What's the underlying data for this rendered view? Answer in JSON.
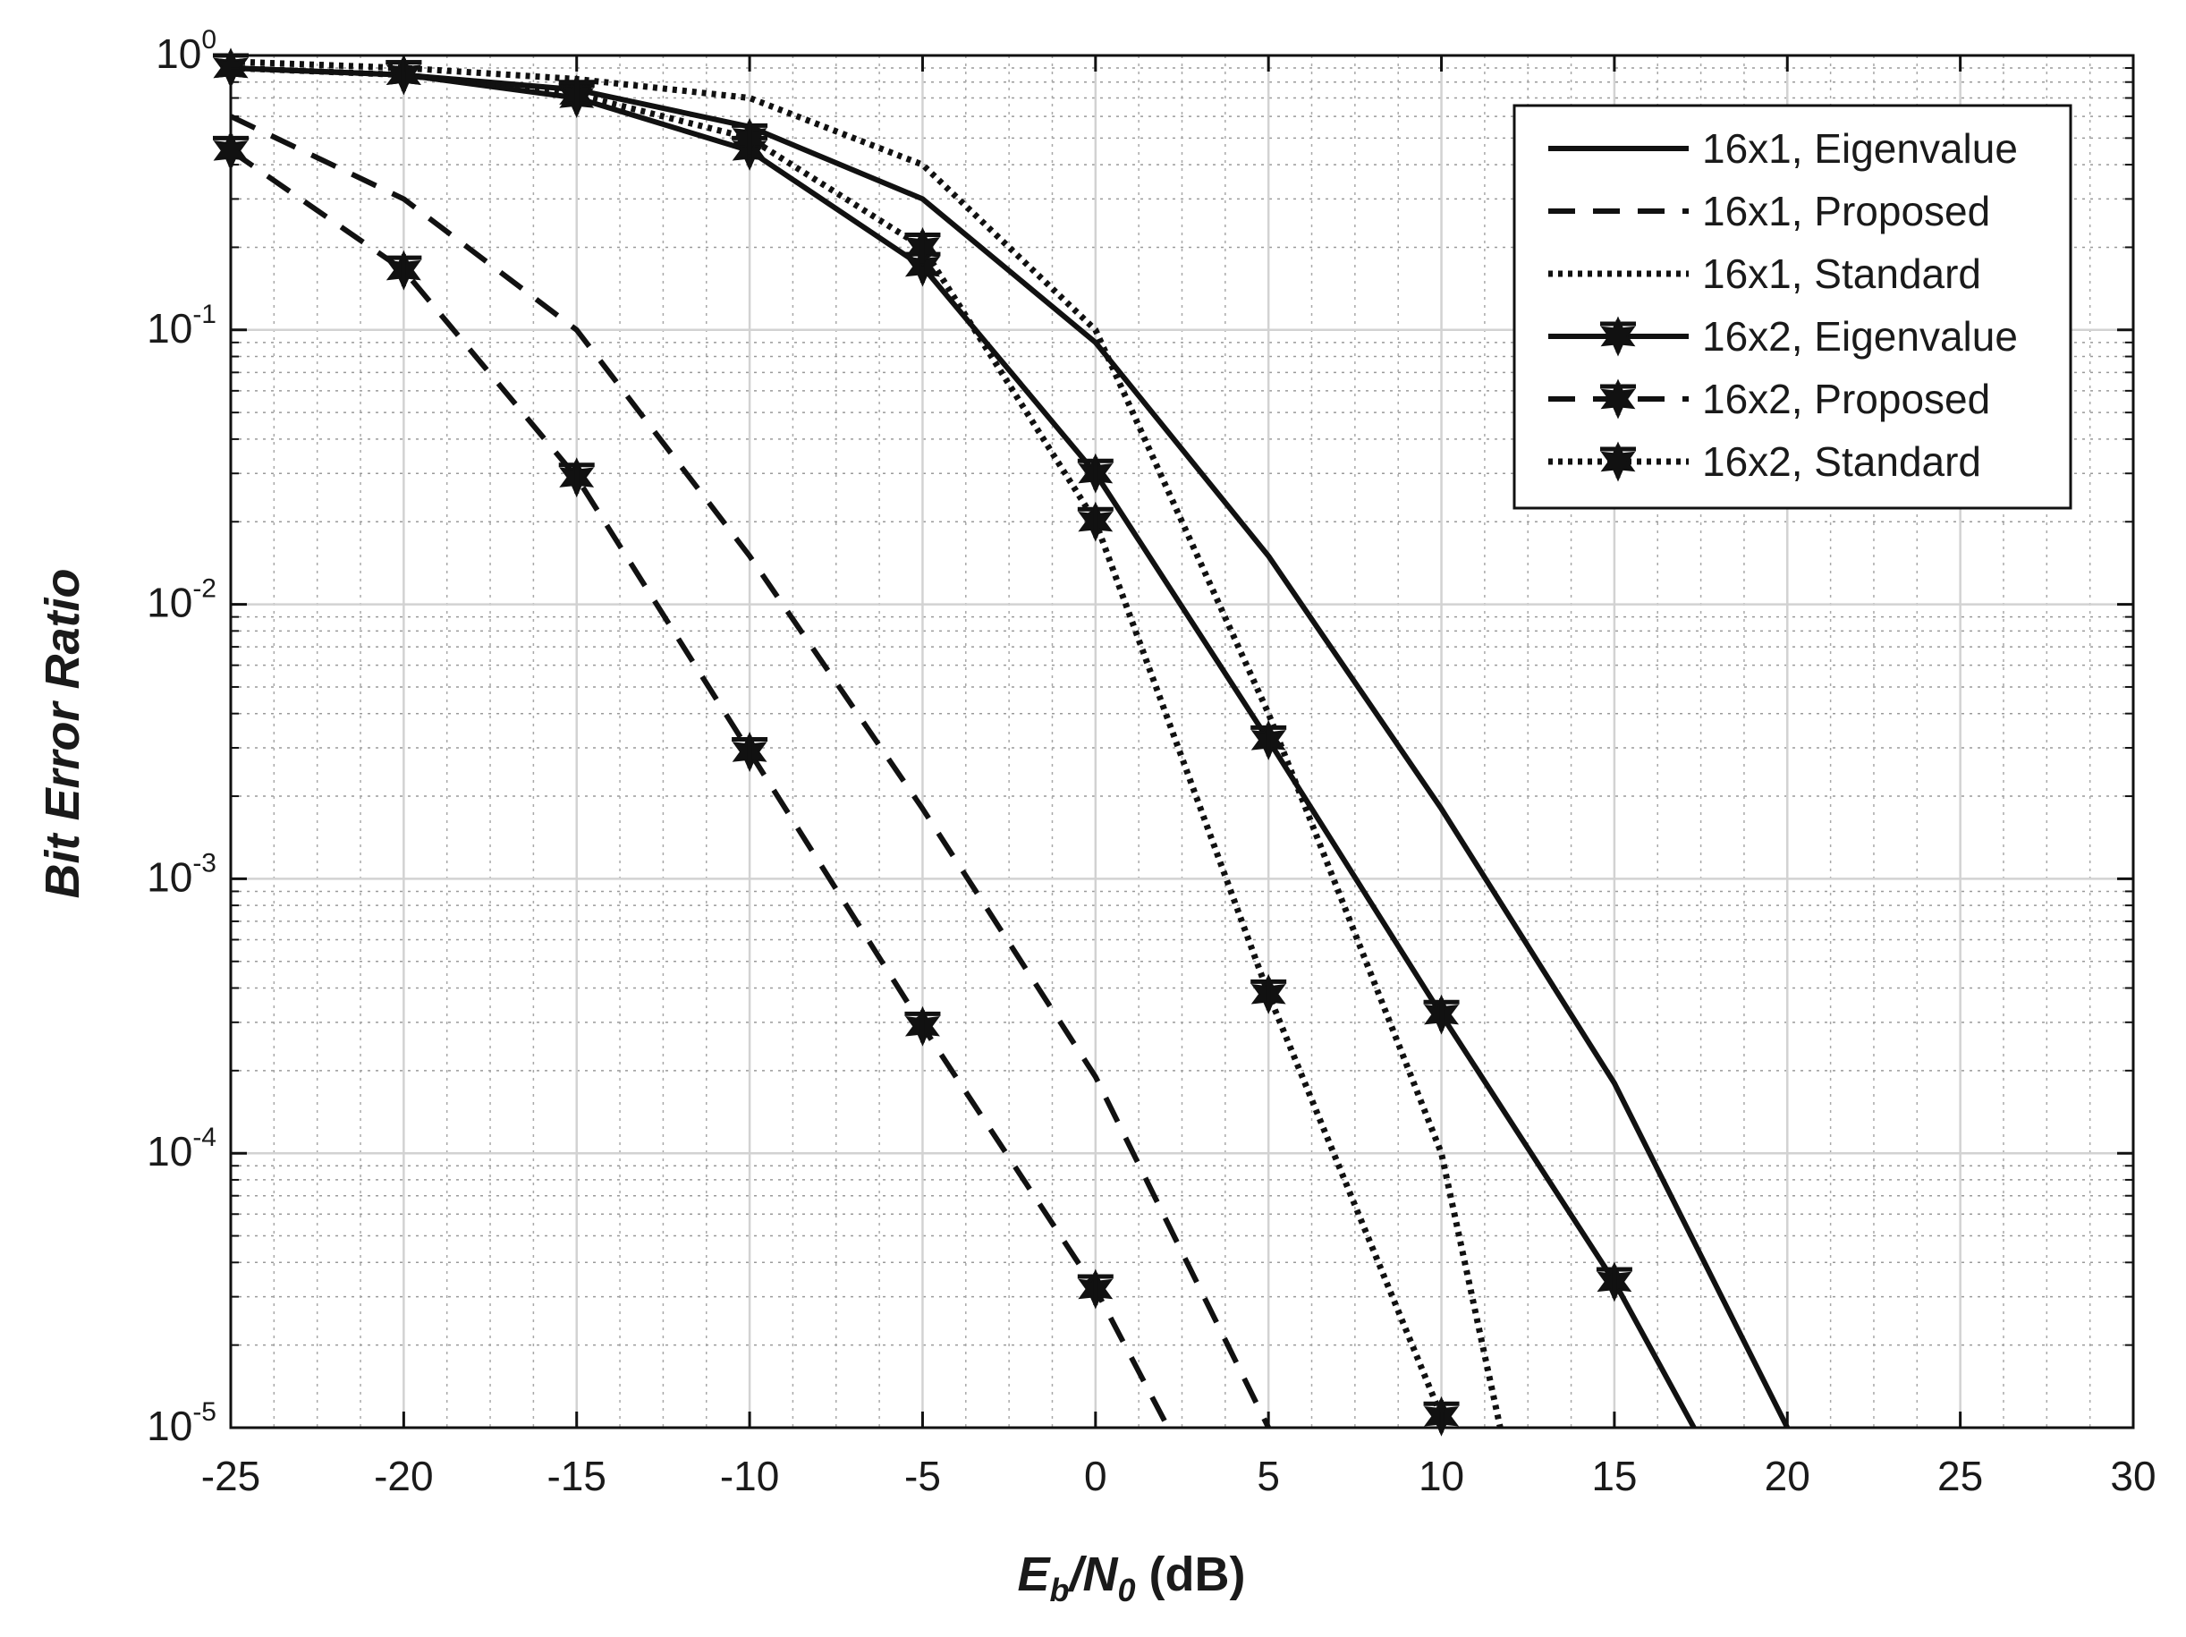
{
  "chart_data": {
    "type": "line",
    "title": "",
    "xlabel": {
      "main": "E",
      "sub": "b",
      "sep": "/N",
      "sub2": "0",
      "unit": " (dB)"
    },
    "ylabel": "Bit Error Ratio",
    "xlim": [
      -25,
      30
    ],
    "ylim": [
      1e-05,
      1
    ],
    "yscale": "log",
    "grid": true,
    "minor_grid": true,
    "legend_position": "top-right",
    "x_ticks": [
      -25,
      -20,
      -15,
      -10,
      -5,
      0,
      5,
      10,
      15,
      20,
      25,
      30
    ],
    "x_tick_labels": [
      "-25",
      "-20",
      "-15",
      "-10",
      "-5",
      "0",
      "5",
      "10",
      "15",
      "20",
      "25",
      "30"
    ],
    "y_ticks": [
      {
        "base": "10",
        "exp": "0"
      },
      {
        "base": "10",
        "exp": "-1"
      },
      {
        "base": "10",
        "exp": "-2"
      },
      {
        "base": "10",
        "exp": "-3"
      },
      {
        "base": "10",
        "exp": "-4"
      },
      {
        "base": "10",
        "exp": "-5"
      }
    ],
    "series": [
      {
        "name": "16x1, Eigenvalue",
        "style": "solid",
        "marker": "none",
        "x": [
          -25,
          -20,
          -15,
          -10,
          -5,
          0,
          5,
          10,
          15,
          20
        ],
        "y": [
          0.9,
          0.85,
          0.75,
          0.55,
          0.3,
          0.09,
          0.015,
          0.0018,
          0.00018,
          1e-05
        ]
      },
      {
        "name": "16x1, Proposed",
        "style": "dashed",
        "marker": "none",
        "x": [
          -25,
          -20,
          -15,
          -10,
          -5,
          0,
          5
        ],
        "y": [
          0.6,
          0.3,
          0.1,
          0.015,
          0.0018,
          0.00019,
          1e-05
        ]
      },
      {
        "name": "16x1, Standard",
        "style": "dotted",
        "marker": "none",
        "x": [
          -25,
          -20,
          -15,
          -10,
          -5,
          0,
          5,
          10,
          11.7
        ],
        "y": [
          0.95,
          0.9,
          0.82,
          0.7,
          0.4,
          0.1,
          0.004,
          0.0001,
          1e-05
        ]
      },
      {
        "name": "16x2, Eigenvalue",
        "style": "solid",
        "marker": "star",
        "x": [
          -25,
          -20,
          -15,
          -10,
          -5,
          0,
          5,
          10,
          15,
          17.3
        ],
        "y": [
          0.9,
          0.85,
          0.7,
          0.45,
          0.17,
          0.03,
          0.0032,
          0.00032,
          3.4e-05,
          1e-05
        ]
      },
      {
        "name": "16x2, Proposed",
        "style": "dashed",
        "marker": "star",
        "x": [
          -25,
          -20,
          -15,
          -10,
          -5,
          0,
          2.1
        ],
        "y": [
          0.45,
          0.165,
          0.029,
          0.0029,
          0.00029,
          3.2e-05,
          1e-05
        ]
      },
      {
        "name": "16x2, Standard",
        "style": "dotted",
        "marker": "star",
        "x": [
          -25,
          -20,
          -15,
          -10,
          -5,
          0,
          5,
          10
        ],
        "y": [
          0.9,
          0.85,
          0.72,
          0.5,
          0.2,
          0.02,
          0.00038,
          1.1e-05
        ]
      }
    ]
  }
}
